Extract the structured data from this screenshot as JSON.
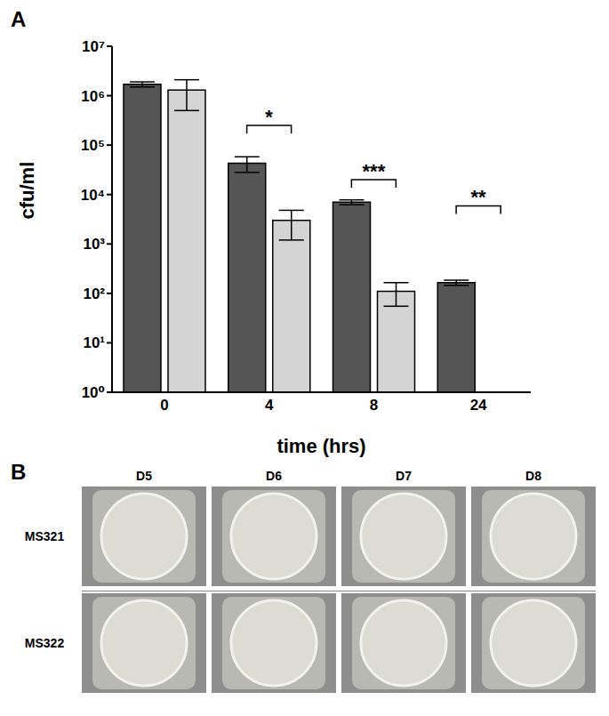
{
  "chart_data": {
    "type": "bar",
    "panel_label": "A",
    "x_label": "time (hrs)",
    "y_label": "cfu/ml",
    "categories": [
      "0",
      "4",
      "8",
      "24"
    ],
    "log": "y",
    "grid": false,
    "ylim": [
      1,
      10000000
    ],
    "yticks": [
      {
        "value": 1,
        "label": "10⁰"
      },
      {
        "value": 10,
        "label": "10¹"
      },
      {
        "value": 100,
        "label": "10²"
      },
      {
        "value": 1000,
        "label": "10³"
      },
      {
        "value": 10000,
        "label": "10⁴"
      },
      {
        "value": 100000,
        "label": "10⁵"
      },
      {
        "value": 1000000,
        "label": "10⁶"
      },
      {
        "value": 10000000,
        "label": "10⁷"
      }
    ],
    "series": [
      {
        "color": "#555555",
        "values": [
          1700000,
          43000,
          7000,
          165
        ],
        "errors": [
          200000,
          15000,
          800,
          20
        ]
      },
      {
        "color": "#d4d4d4",
        "values": [
          1300000,
          3000,
          110,
          null
        ],
        "errors": [
          800000,
          1800,
          55,
          null
        ]
      }
    ],
    "annotations": [
      {
        "x": "4",
        "y": 250000,
        "text": "*"
      },
      {
        "x": "8",
        "y": 20000,
        "text": "***"
      },
      {
        "x": "24",
        "y": 5900,
        "text": "**"
      }
    ]
  },
  "image_grid": {
    "panel_label": "B",
    "columns": [
      "D5",
      "D6",
      "D7",
      "D8"
    ],
    "rows": [
      "MS321",
      "MS322"
    ]
  }
}
